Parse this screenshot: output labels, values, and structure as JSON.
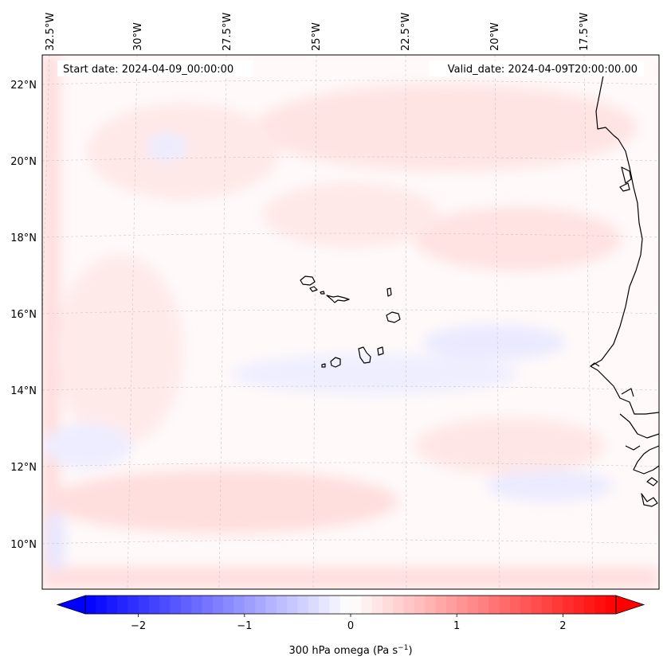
{
  "map": {
    "start_label": "Start date: 2024-04-09_00:00:00",
    "valid_label": "Valid_date: 2024-04-09T20:00:00.00",
    "lon_labels": [
      "32.5°W",
      "30°W",
      "27.5°W",
      "25°W",
      "22.5°W",
      "20°W",
      "17.5°W"
    ],
    "lat_labels": [
      "22°N",
      "20°N",
      "18°N",
      "16°N",
      "14°N",
      "12°N",
      "10°N"
    ],
    "gridlines": "dashed",
    "field_colors": {
      "positive": "#ffdcdc",
      "negative": "#e6e6ff",
      "neutral": "#fff9f9"
    }
  },
  "colorbar": {
    "ticks": [
      "−2",
      "−1",
      "0",
      "1",
      "2"
    ],
    "tick_values": [
      -2,
      -1,
      0,
      1,
      2
    ],
    "range": [
      -2.5,
      2.5
    ],
    "label_main": "300 hPa omega (Pa s",
    "label_sup": "−1",
    "label_end": ")",
    "colors": {
      "low": "#0000ff",
      "mid": "#ffffff",
      "high": "#ff0000"
    },
    "extend": "both"
  }
}
